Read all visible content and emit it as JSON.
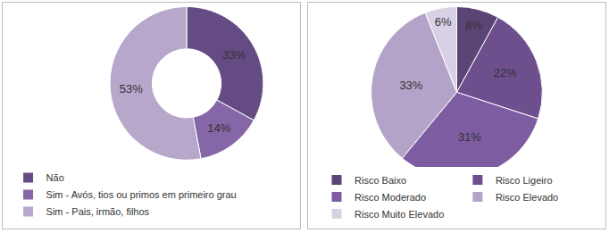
{
  "chart_data": [
    {
      "type": "donut",
      "categories": [
        "Não",
        "Sim - Avós, tios ou primos em primeiro grau",
        "Sim - Pais, irmão, filhos"
      ],
      "values": [
        33,
        14,
        53
      ],
      "value_labels": [
        "33%",
        "14%",
        "53%"
      ],
      "colors": [
        "#654b84",
        "#8566a6",
        "#b6a7cb"
      ],
      "data_labels": true,
      "legend": "bottom"
    },
    {
      "type": "pie",
      "categories": [
        "Risco Baixo",
        "Risco Ligeiro",
        "Risco Moderado",
        "Risco Elevado",
        "Risco Muito Elevado"
      ],
      "values": [
        8,
        22,
        31,
        33,
        6
      ],
      "value_labels": [
        "8%",
        "22%",
        "31%",
        "33%",
        "6%"
      ],
      "colors": [
        "#5b4476",
        "#6e4f8e",
        "#7d5ca2",
        "#b3a3c8",
        "#d8d0e4"
      ],
      "data_labels": true,
      "legend": "bottom"
    }
  ]
}
